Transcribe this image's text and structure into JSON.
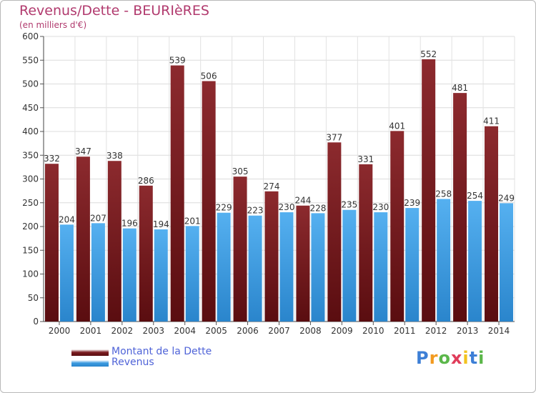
{
  "header": {
    "title": "Revenus/Dette - BEURIèRES",
    "subtitle": "(en milliers d'€)"
  },
  "legend": {
    "items": [
      {
        "label": "Montant de la Dette",
        "color": "#7a1c1f"
      },
      {
        "label": "Revenus",
        "color": "#3b9ae0"
      }
    ]
  },
  "logo": {
    "letters": [
      "P",
      "r",
      "o",
      "x",
      "i",
      "t",
      "i"
    ],
    "colors": [
      "#3d7fd6",
      "#f29a1f",
      "#5bb74a",
      "#e03c5a",
      "#f2c21f",
      "#3d7fd6",
      "#5bb74a"
    ]
  },
  "chart_data": {
    "type": "bar",
    "categories": [
      "2000",
      "2001",
      "2002",
      "2003",
      "2004",
      "2005",
      "2006",
      "2007",
      "2008",
      "2009",
      "2010",
      "2011",
      "2012",
      "2013",
      "2014"
    ],
    "series": [
      {
        "name": "Montant de la Dette",
        "color": "#7a1c1f",
        "values": [
          332,
          347,
          338,
          286,
          539,
          506,
          305,
          274,
          244,
          377,
          331,
          401,
          552,
          481,
          411
        ]
      },
      {
        "name": "Revenus",
        "color": "#3b9ae0",
        "values": [
          204,
          207,
          196,
          194,
          201,
          229,
          223,
          230,
          228,
          235,
          230,
          239,
          258,
          254,
          249
        ]
      }
    ],
    "ylim": [
      0,
      600
    ],
    "yticks": [
      0,
      50,
      100,
      150,
      200,
      250,
      300,
      350,
      400,
      450,
      500,
      550,
      600
    ],
    "grid": true,
    "legend_position": "bottom-left"
  }
}
